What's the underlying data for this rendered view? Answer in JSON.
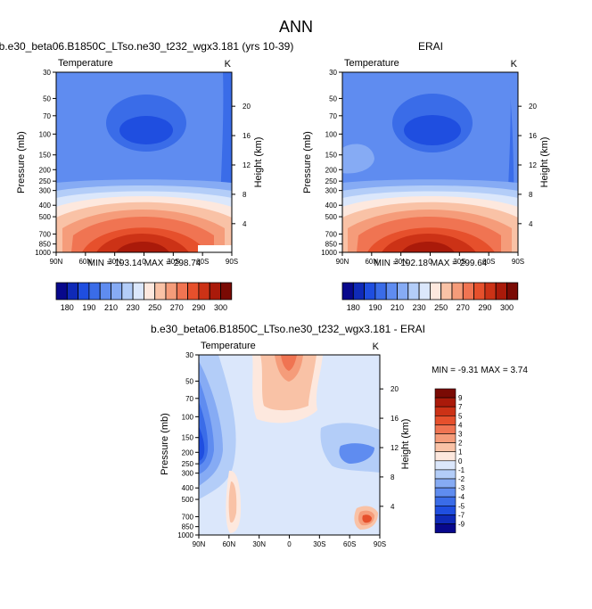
{
  "figure": {
    "title": "ANN",
    "model_caption": "b.e30_beta06.B1850C_LTso.ne30_t232_wgx3.181 (yrs 10-39)",
    "obs_caption": "ERAI",
    "diff_caption": "b.e30_beta06.B1850C_LTso.ne30_t232_wgx3.181 - ERAI"
  },
  "colors": {
    "abs_scale": [
      "#08088c",
      "#0f2ab8",
      "#1f4ee0",
      "#3a6ce8",
      "#5f8cf0",
      "#86abf4",
      "#b3cdf8",
      "#dbe7fb",
      "#fde8de",
      "#f9c2a6",
      "#f59c7a",
      "#f07452",
      "#e6502c",
      "#cc3216",
      "#aa1a0a",
      "#7a0a04"
    ],
    "diff_scale": [
      "#08088c",
      "#0f2ab8",
      "#1f4ee0",
      "#3a6ce8",
      "#5f8cf0",
      "#86abf4",
      "#b3cdf8",
      "#dbe7fb",
      "#fde8de",
      "#f9c2a6",
      "#f59c7a",
      "#f07452",
      "#e6502c",
      "#cc3216",
      "#aa1a0a",
      "#7a0a04"
    ]
  },
  "chart_data": [
    {
      "type": "heatmap",
      "title": "b.e30_beta06.B1850C_LTso.ne30_t232_wgx3.181 (yrs 10-39)",
      "left_label": "Temperature",
      "right_label": "K",
      "ylabel": "Pressure (mb)",
      "ylabel_right": "Height (km)",
      "x_ticks": [
        "90N",
        "60N",
        "30N",
        "0",
        "30S",
        "60S",
        "90S"
      ],
      "x_tick_values": [
        90,
        60,
        30,
        0,
        -30,
        -60,
        -90
      ],
      "y_ticks": [
        "30",
        "50",
        "70",
        "100",
        "150",
        "200",
        "250",
        "300",
        "400",
        "500",
        "700",
        "850",
        "1000"
      ],
      "y_tick_values": [
        30,
        50,
        70,
        100,
        150,
        200,
        250,
        300,
        400,
        500,
        700,
        850,
        1000
      ],
      "height_ticks": [
        "20",
        "16",
        "12",
        "8",
        "4"
      ],
      "height_tick_values": [
        20,
        16,
        12,
        8,
        4
      ],
      "stats": "MIN = 193.14   MAX = 298.74",
      "min": 193.14,
      "max": 298.74,
      "colorbar_labels": [
        "180",
        "190",
        "210",
        "230",
        "250",
        "270",
        "290",
        "300"
      ],
      "levels": [
        180,
        185,
        190,
        200,
        210,
        220,
        230,
        240,
        250,
        260,
        270,
        280,
        290,
        295,
        300
      ],
      "ylim": [
        1000,
        30
      ],
      "xlim": [
        90,
        -90
      ]
    },
    {
      "type": "heatmap",
      "title": "ERAI",
      "left_label": "Temperature",
      "right_label": "K",
      "ylabel": "Pressure (mb)",
      "ylabel_right": "Height (km)",
      "x_ticks": [
        "90N",
        "60N",
        "30N",
        "0",
        "30S",
        "60S",
        "90S"
      ],
      "x_tick_values": [
        90,
        60,
        30,
        0,
        -30,
        -60,
        -90
      ],
      "y_ticks": [
        "30",
        "50",
        "70",
        "100",
        "150",
        "200",
        "250",
        "300",
        "400",
        "500",
        "700",
        "850",
        "1000"
      ],
      "y_tick_values": [
        30,
        50,
        70,
        100,
        150,
        200,
        250,
        300,
        400,
        500,
        700,
        850,
        1000
      ],
      "height_ticks": [
        "20",
        "16",
        "12",
        "8",
        "4"
      ],
      "height_tick_values": [
        20,
        16,
        12,
        8,
        4
      ],
      "stats": "MIN = 192.18   MAX = 299.64",
      "min": 192.18,
      "max": 299.64,
      "colorbar_labels": [
        "180",
        "190",
        "210",
        "230",
        "250",
        "270",
        "290",
        "300"
      ],
      "levels": [
        180,
        185,
        190,
        200,
        210,
        220,
        230,
        240,
        250,
        260,
        270,
        280,
        290,
        295,
        300
      ],
      "ylim": [
        1000,
        30
      ],
      "xlim": [
        90,
        -90
      ]
    },
    {
      "type": "heatmap",
      "title": "b.e30_beta06.B1850C_LTso.ne30_t232_wgx3.181 - ERAI",
      "left_label": "Temperature",
      "right_label": "K",
      "ylabel": "Pressure (mb)",
      "ylabel_right": "Height (km)",
      "x_ticks": [
        "90N",
        "60N",
        "30N",
        "0",
        "30S",
        "60S",
        "90S"
      ],
      "x_tick_values": [
        90,
        60,
        30,
        0,
        -30,
        -60,
        -90
      ],
      "y_ticks": [
        "30",
        "50",
        "70",
        "100",
        "150",
        "200",
        "250",
        "300",
        "400",
        "500",
        "700",
        "850",
        "1000"
      ],
      "y_tick_values": [
        30,
        50,
        70,
        100,
        150,
        200,
        250,
        300,
        400,
        500,
        700,
        850,
        1000
      ],
      "height_ticks": [
        "20",
        "16",
        "12",
        "8",
        "4"
      ],
      "height_tick_values": [
        20,
        16,
        12,
        8,
        4
      ],
      "stats": "MIN = -9.31   MAX =   3.74",
      "min": -9.31,
      "max": 3.74,
      "colorbar_labels": [
        "9",
        "7",
        "5",
        "4",
        "3",
        "2",
        "1",
        "0",
        "-1",
        "-2",
        "-3",
        "-4",
        "-5",
        "-7",
        "-9"
      ],
      "levels": [
        -9,
        -7,
        -5,
        -4,
        -3,
        -2,
        -1,
        0,
        1,
        2,
        3,
        4,
        5,
        7,
        9
      ],
      "ylim": [
        1000,
        30
      ],
      "xlim": [
        90,
        -90
      ]
    }
  ]
}
